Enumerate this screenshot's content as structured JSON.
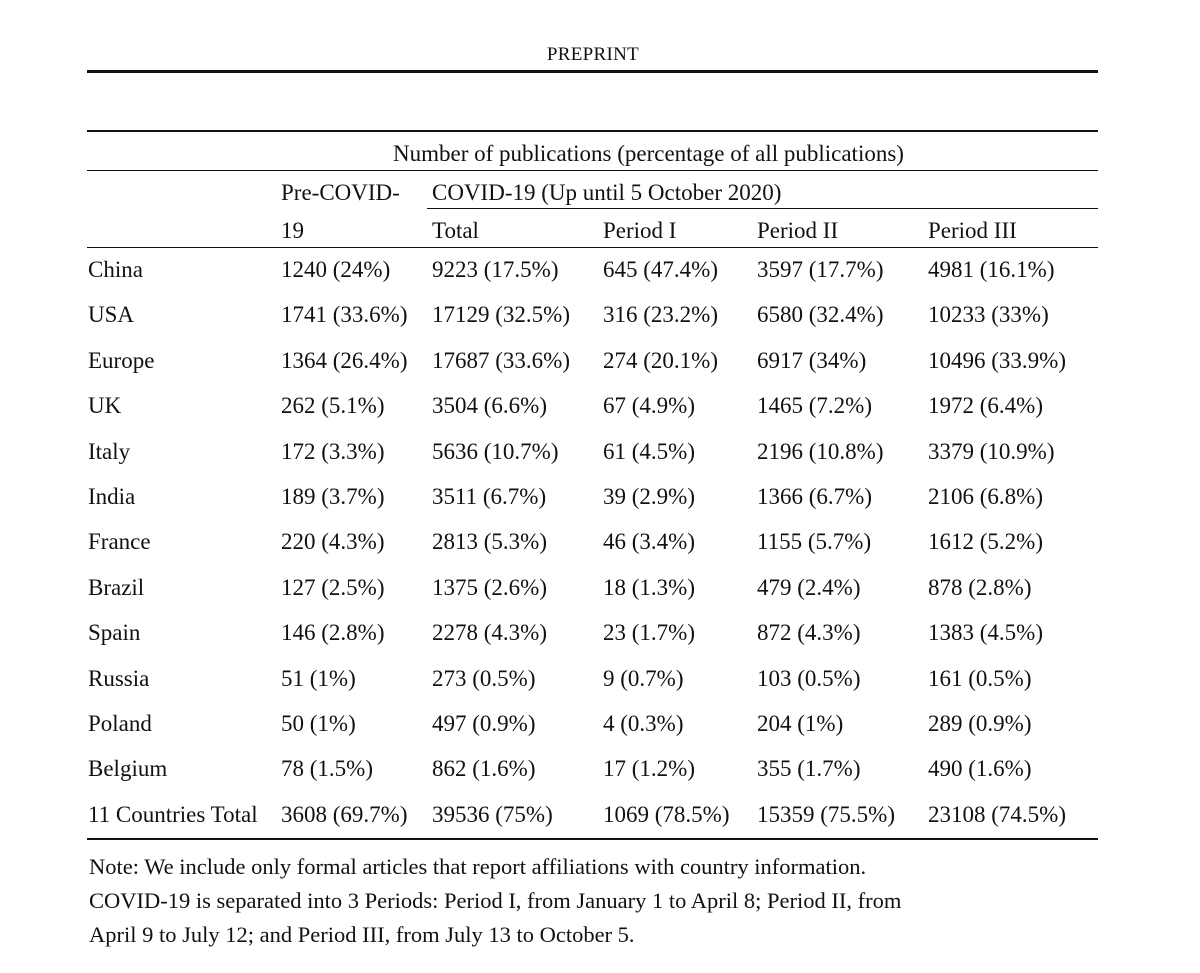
{
  "running_header": "PREPRINT",
  "table": {
    "span_title": "Number of publications (percentage of all publications)",
    "pre_covid_line1": "Pre-COVID-",
    "pre_covid_line2": "19",
    "covid_title": "COVID-19 (Up until 5 October 2020)",
    "col_total": "Total",
    "col_p1": "Period I",
    "col_p2": "Period II",
    "col_p3": "Period III",
    "rows": [
      {
        "country": "China",
        "pre": "1240 (24%)",
        "total": "9223 (17.5%)",
        "p1": "645 (47.4%)",
        "p2": "3597 (17.7%)",
        "p3": "4981 (16.1%)"
      },
      {
        "country": "USA",
        "pre": "1741 (33.6%)",
        "total": "17129 (32.5%)",
        "p1": "316 (23.2%)",
        "p2": "6580 (32.4%)",
        "p3": "10233 (33%)"
      },
      {
        "country": "Europe",
        "pre": "1364 (26.4%)",
        "total": "17687 (33.6%)",
        "p1": "274 (20.1%)",
        "p2": "6917 (34%)",
        "p3": "10496 (33.9%)"
      },
      {
        "country": "UK",
        "pre": "262 (5.1%)",
        "total": "3504 (6.6%)",
        "p1": "67 (4.9%)",
        "p2": "1465 (7.2%)",
        "p3": "1972 (6.4%)"
      },
      {
        "country": "Italy",
        "pre": "172 (3.3%)",
        "total": "5636 (10.7%)",
        "p1": "61 (4.5%)",
        "p2": "2196 (10.8%)",
        "p3": "3379 (10.9%)"
      },
      {
        "country": "India",
        "pre": "189 (3.7%)",
        "total": "3511 (6.7%)",
        "p1": "39 (2.9%)",
        "p2": "1366 (6.7%)",
        "p3": "2106 (6.8%)"
      },
      {
        "country": "France",
        "pre": "220 (4.3%)",
        "total": "2813 (5.3%)",
        "p1": "46 (3.4%)",
        "p2": "1155 (5.7%)",
        "p3": "1612 (5.2%)"
      },
      {
        "country": "Brazil",
        "pre": "127 (2.5%)",
        "total": "1375 (2.6%)",
        "p1": "18 (1.3%)",
        "p2": "479 (2.4%)",
        "p3": "878 (2.8%)"
      },
      {
        "country": "Spain",
        "pre": "146 (2.8%)",
        "total": "2278 (4.3%)",
        "p1": "23 (1.7%)",
        "p2": "872 (4.3%)",
        "p3": "1383 (4.5%)"
      },
      {
        "country": "Russia",
        "pre": "51 (1%)",
        "total": "273 (0.5%)",
        "p1": "9 (0.7%)",
        "p2": "103 (0.5%)",
        "p3": "161 (0.5%)"
      },
      {
        "country": "Poland",
        "pre": "50 (1%)",
        "total": "497 (0.9%)",
        "p1": "4 (0.3%)",
        "p2": "204 (1%)",
        "p3": "289 (0.9%)"
      },
      {
        "country": "Belgium",
        "pre": "78 (1.5%)",
        "total": "862 (1.6%)",
        "p1": "17 (1.2%)",
        "p2": "355 (1.7%)",
        "p3": "490 (1.6%)"
      },
      {
        "country": "11 Countries Total",
        "pre": "3608 (69.7%)",
        "total": "39536 (75%)",
        "p1": "1069 (78.5%)",
        "p2": "15359 (75.5%)",
        "p3": "23108 (74.5%)"
      }
    ]
  },
  "note": {
    "line1": "Note: We include only formal articles that report affiliations with country information.",
    "line2": "COVID-19 is separated into 3 Periods: Period I, from January 1 to April 8; Period II, from",
    "line3": "April 9 to July 12; and Period III, from July 13 to October 5."
  }
}
